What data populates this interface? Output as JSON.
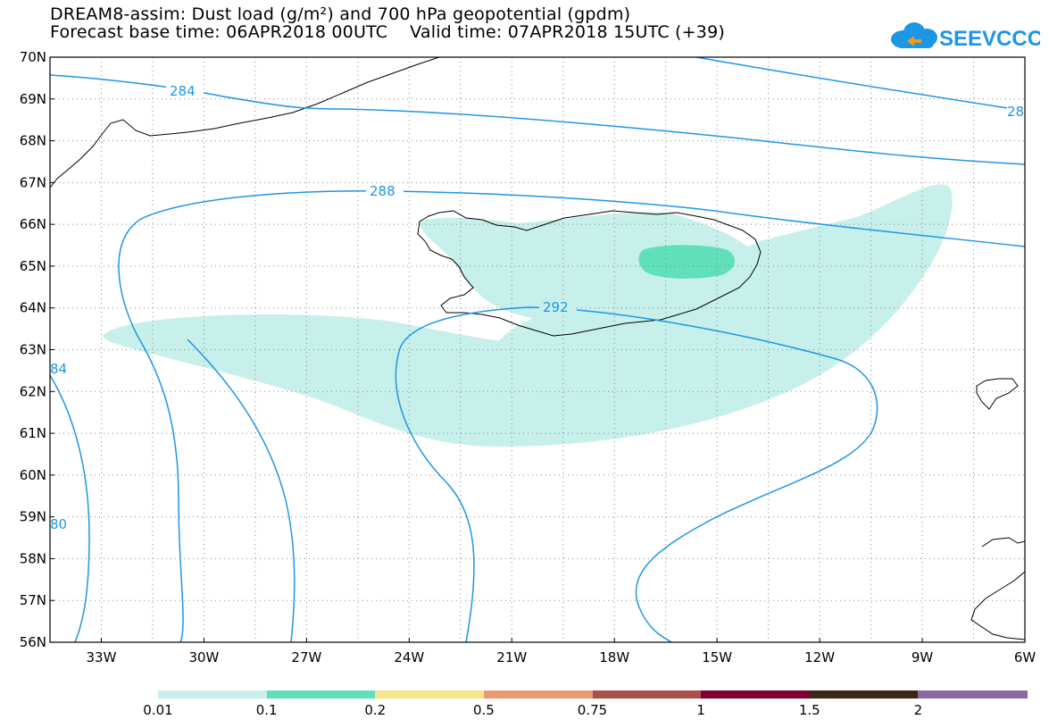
{
  "header": {
    "title_line1": "DREAM8-assim: Dust load (g/m²) and 700 hPa geopotential (gpdm)",
    "title_line2": "Forecast base time: 06APR2018 00UTC    Valid time: 07APR2018 15UTC (+39)",
    "logo_text": "SEEVCCC"
  },
  "map": {
    "lat_labels": [
      "70N",
      "69N",
      "68N",
      "67N",
      "66N",
      "65N",
      "64N",
      "63N",
      "62N",
      "61N",
      "60N",
      "59N",
      "58N",
      "57N",
      "56N"
    ],
    "lon_labels": [
      "33W",
      "30W",
      "27W",
      "24W",
      "21W",
      "18W",
      "15W",
      "12W",
      "9W",
      "6W"
    ],
    "contour_labels": [
      "284",
      "288",
      "292",
      "84",
      "80",
      "28"
    ]
  },
  "colorbar": {
    "labels": [
      "0.01",
      "0.1",
      "0.2",
      "0.5",
      "0.75",
      "1",
      "1.5",
      "2"
    ],
    "colors": [
      "#c8f0ea",
      "#5fe0b8",
      "#f5e68a",
      "#e89a74",
      "#a8504a",
      "#800030",
      "#3a2818",
      "#8a6aa0"
    ]
  },
  "colors": {
    "contour": "#1e96e6",
    "dust_low": "#c8f0ea",
    "dust_mid": "#5fe0b8",
    "logo": "#1e96e6"
  }
}
